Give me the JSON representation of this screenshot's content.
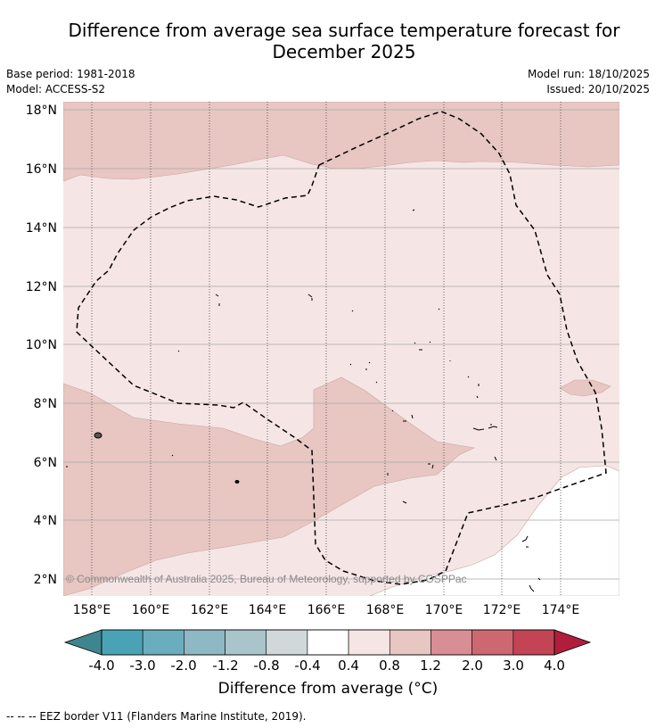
{
  "title_line1": "Difference from average sea surface temperature forecast for",
  "title_line2": "December 2025",
  "base_period": "Base period: 1981-2018",
  "model": "Model: ACCESS-S2",
  "model_run": "Model run: 18/10/2025",
  "issued": "Issued: 20/10/2025",
  "copyright": "© Commonwealth of Australia 2025, Bureau of Meteorology, supported by COSPPac",
  "lat_labels": [
    "18°N",
    "16°N",
    "14°N",
    "12°N",
    "10°N",
    "8°N",
    "6°N",
    "4°N",
    "2°N"
  ],
  "lon_labels": [
    "158°E",
    "160°E",
    "162°E",
    "164°E",
    "166°E",
    "168°E",
    "170°E",
    "172°E",
    "174°E"
  ],
  "colorbar": {
    "ticks": [
      "-4.0",
      "-3.0",
      "-2.0",
      "-1.2",
      "-0.8",
      "-0.4",
      "0.4",
      "0.8",
      "1.2",
      "2.0",
      "3.0",
      "4.0"
    ],
    "colors": [
      "#3f858f",
      "#4aa3b5",
      "#6aaebe",
      "#8db8c4",
      "#a9c5cb",
      "#d0d8da",
      "#ffffff",
      "#f5e6e5",
      "#e8c6c2",
      "#d98e95",
      "#cd6870",
      "#c24455",
      "#b11e3c"
    ],
    "label": "Difference from average (°C)"
  },
  "footer": "--  --  -- EEZ border V11 (Flanders Marine Institute, 2019)."
}
